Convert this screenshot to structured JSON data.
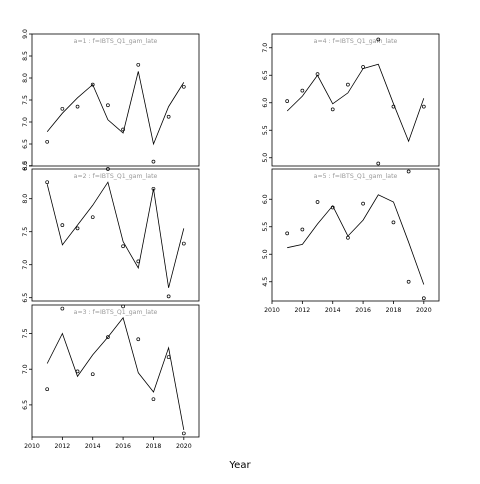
{
  "xlabel": "Year",
  "chart_data": [
    {
      "type": "line",
      "panel": "a=1",
      "title": "a=1 : f=IBTS_Q1_gam_late",
      "x": [
        2011,
        2012,
        2013,
        2014,
        2015,
        2016,
        2017,
        2018,
        2019,
        2020
      ],
      "line": [
        6.78,
        7.2,
        7.55,
        7.85,
        7.05,
        6.75,
        8.15,
        6.5,
        7.35,
        7.9
      ],
      "points": [
        6.55,
        7.3,
        7.35,
        7.85,
        7.38,
        6.83,
        8.3,
        6.1,
        7.12,
        7.8
      ],
      "xlim": [
        2010,
        2021
      ],
      "ylim": [
        6.0,
        9.0
      ],
      "yticks": [
        "6.0",
        "6.5",
        "7.0",
        "7.5",
        "8.0",
        "8.5",
        "9.0"
      ]
    },
    {
      "type": "line",
      "panel": "a=2",
      "title": "a=2 : f=IBTS_Q1_gam_late",
      "x": [
        2011,
        2012,
        2013,
        2014,
        2015,
        2016,
        2017,
        2018,
        2019,
        2020
      ],
      "line": [
        8.22,
        7.3,
        7.6,
        7.9,
        8.25,
        7.35,
        6.95,
        8.15,
        6.65,
        7.55
      ],
      "points": [
        8.25,
        7.6,
        7.55,
        7.72,
        8.45,
        7.28,
        7.05,
        8.15,
        6.52,
        7.32
      ],
      "xlim": [
        2010,
        2021
      ],
      "ylim": [
        6.45,
        8.45
      ],
      "yticks": [
        "6.5",
        "7.0",
        "7.5",
        "8.0",
        "8.5"
      ]
    },
    {
      "type": "line",
      "panel": "a=3",
      "title": "a=3 : f=IBTS_Q1_gam_late",
      "x": [
        2011,
        2012,
        2013,
        2014,
        2015,
        2016,
        2017,
        2018,
        2019,
        2020
      ],
      "line": [
        7.08,
        7.5,
        6.9,
        7.2,
        7.45,
        7.72,
        6.95,
        6.68,
        7.3,
        6.15
      ],
      "points": [
        6.72,
        7.85,
        6.97,
        6.93,
        7.45,
        7.88,
        7.42,
        6.58,
        7.17,
        6.1
      ],
      "xlim": [
        2010,
        2021
      ],
      "ylim": [
        6.05,
        7.9
      ],
      "yticks": [
        "6.5",
        "7.0",
        "7.5"
      ]
    },
    {
      "type": "line",
      "panel": "a=4",
      "title": "a=4 : f=IBTS_Q1_gam_late",
      "x": [
        2011,
        2012,
        2013,
        2014,
        2015,
        2016,
        2017,
        2018,
        2019,
        2020
      ],
      "line": [
        5.85,
        6.12,
        6.5,
        5.98,
        6.18,
        6.62,
        6.7,
        5.98,
        5.3,
        6.08
      ],
      "points": [
        6.03,
        6.22,
        6.52,
        5.88,
        6.33,
        6.65,
        7.15,
        5.93,
        4.75,
        5.93
      ],
      "xlim": [
        2010,
        2021
      ],
      "ylim": [
        4.85,
        7.25
      ],
      "yticks": [
        "5.0",
        "5.5",
        "6.0",
        "6.5",
        "7.0"
      ]
    },
    {
      "type": "line",
      "panel": "a=5",
      "title": "a=5 : f=IBTS_Q1_gam_late",
      "x": [
        2011,
        2012,
        2013,
        2014,
        2015,
        2016,
        2017,
        2018,
        2019,
        2020
      ],
      "line": [
        5.12,
        5.18,
        5.55,
        5.88,
        5.33,
        5.62,
        6.08,
        5.95,
        5.22,
        4.45
      ],
      "points": [
        5.38,
        5.45,
        5.95,
        5.85,
        5.3,
        5.92,
        6.65,
        5.58,
        4.5,
        4.2
      ],
      "xlim": [
        2010,
        2021
      ],
      "ylim": [
        4.15,
        6.55
      ],
      "yticks": [
        "4.5",
        "5.0",
        "5.5",
        "6.0"
      ]
    }
  ],
  "xticks": [
    "2010",
    "2012",
    "2014",
    "2016",
    "2018",
    "2020"
  ]
}
